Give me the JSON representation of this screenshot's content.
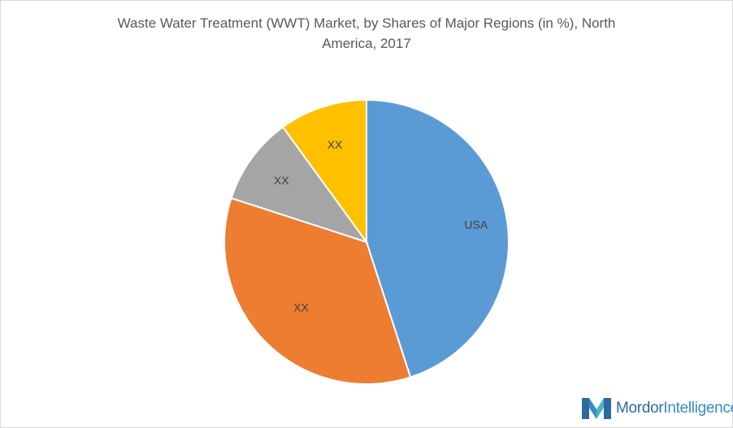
{
  "chart_data": {
    "type": "pie",
    "title_line1": "Waste Water Treatment (WWT) Market, by  Shares of Major Regions (in %), North",
    "title_line2": "America, 2017",
    "slices": [
      {
        "label": "USA",
        "value": 45,
        "color": "#5b9bd5"
      },
      {
        "label": "XX",
        "value": 35,
        "color": "#ed7d31"
      },
      {
        "label": "XX",
        "value": 10,
        "color": "#a5a5a5"
      },
      {
        "label": "XX",
        "value": 10,
        "color": "#ffc000"
      }
    ],
    "legend": "none"
  },
  "brand": {
    "name_part1": "Mordor",
    "name_part2": "Intelligence",
    "colors": {
      "dark": "#2c6aa0",
      "light": "#3a8ac7",
      "teal": "#4fb3c8"
    }
  }
}
